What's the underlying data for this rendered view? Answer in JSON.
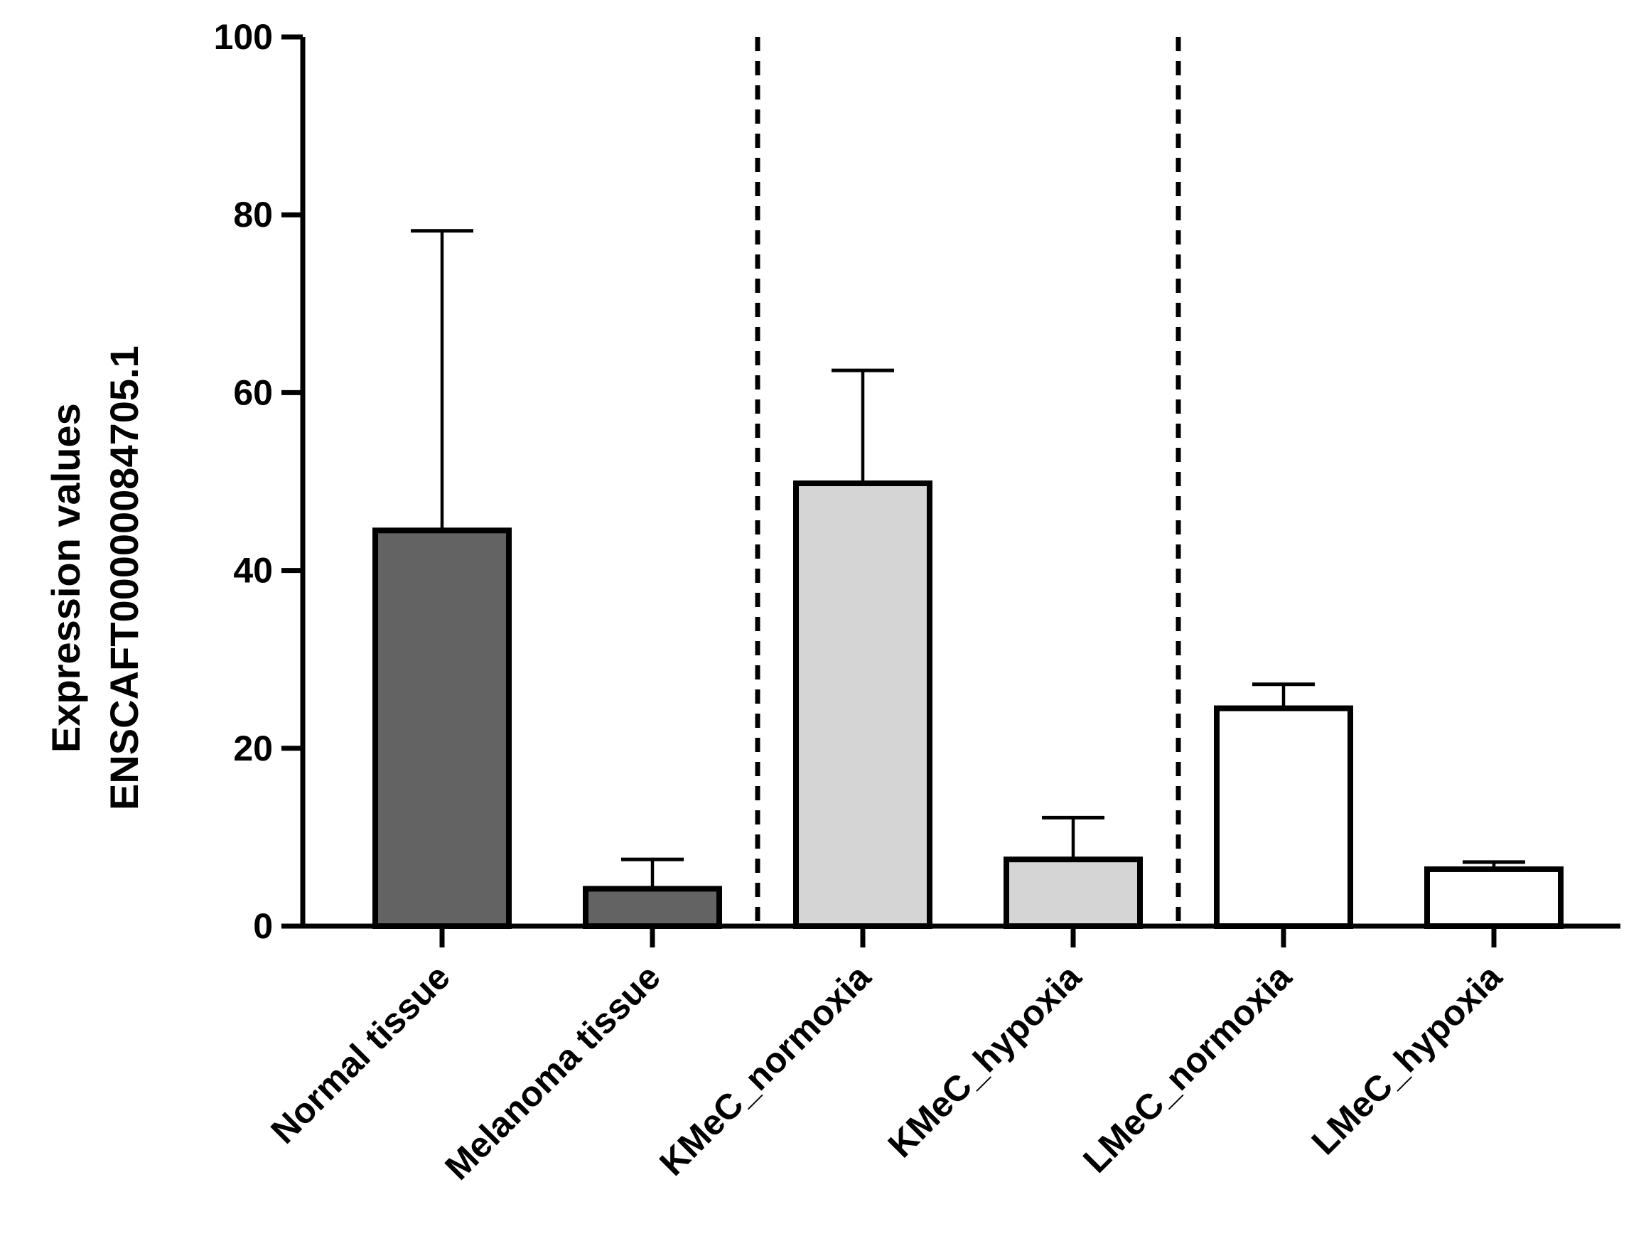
{
  "chart_data": {
    "type": "bar",
    "title": "",
    "xlabel": "",
    "ylabel": [
      "Expression values",
      "ENSCAFT00000084705.1"
    ],
    "ylim": [
      0,
      100
    ],
    "yticks": [
      0,
      20,
      40,
      60,
      80,
      100
    ],
    "ytick_labels": [
      "0",
      "20",
      "40",
      "60",
      "80",
      "100"
    ],
    "categories": [
      "Normal tissue",
      "Melanoma tissue",
      "KMeC_normoxia",
      "KMeC_hypoxia",
      "LMeC_normoxia",
      "LMeC_hypoxia"
    ],
    "values": [
      44.5,
      4.2,
      49.8,
      7.5,
      24.5,
      6.4
    ],
    "error_upper": [
      78.2,
      7.5,
      62.5,
      12.2,
      27.2,
      7.2
    ],
    "bar_colors": [
      "#636363",
      "#636363",
      "#d5d5d5",
      "#d5d5d5",
      "#ffffff",
      "#ffffff"
    ],
    "group_separators_after": [
      1,
      3
    ],
    "grid": false,
    "legend": "none"
  }
}
